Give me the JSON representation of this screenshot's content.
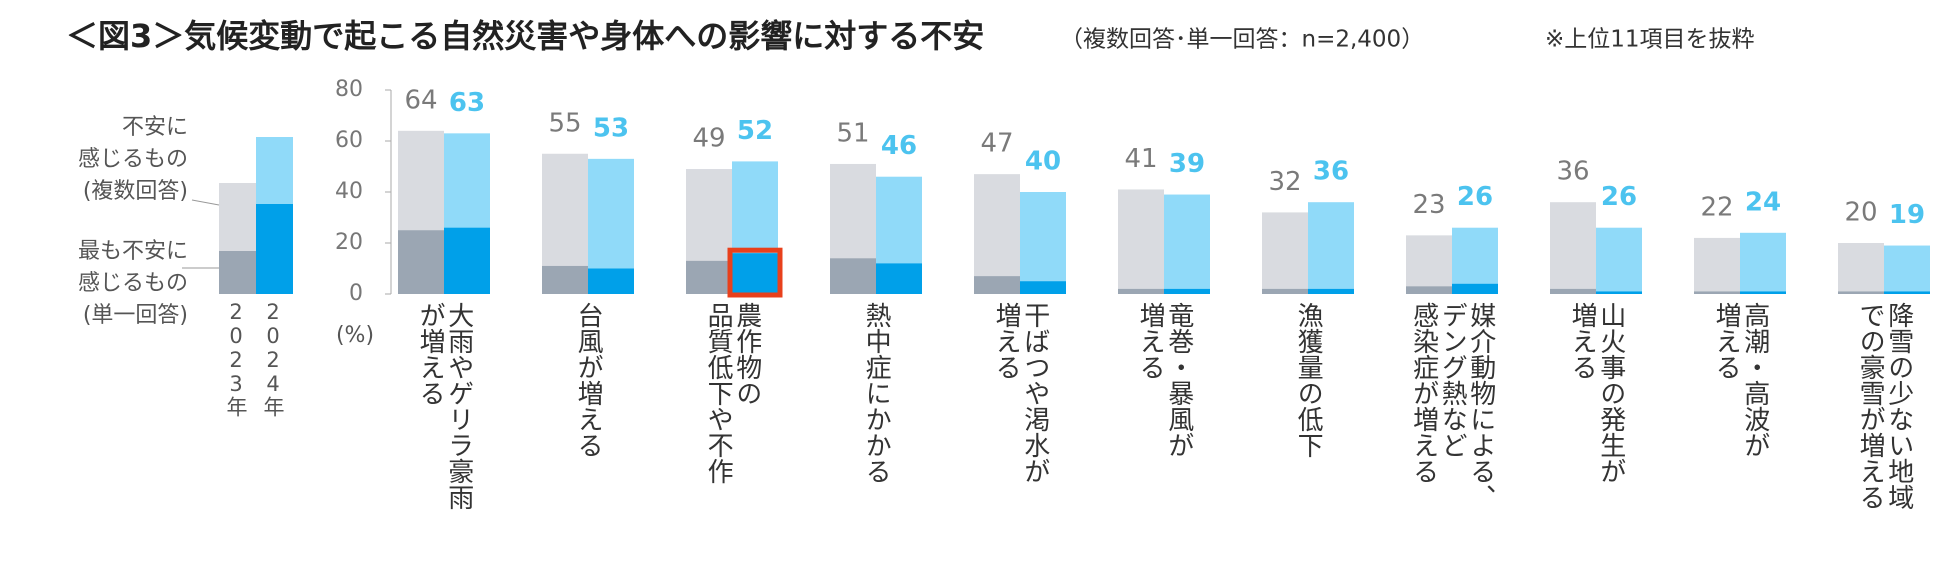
{
  "chart_data": {
    "type": "bar",
    "title": "＜図3＞気候変動で起こる自然災害や身体への影響に対する不安",
    "subtitle": "（複数回答･単一回答：n=2,400）",
    "note": "※上位11項目を抜粋",
    "y_label": "(%)",
    "legend_labels": {
      "multi": "不安に\n感じるもの\n(複数回答)",
      "single": "最も不安に\n感じるもの\n(単一回答)",
      "years": [
        "2023年",
        "2024年"
      ]
    },
    "categories": [
      "大雨やゲリラ豪雨\nが増える",
      "台風が増える",
      "農作物の\n品質低下や不作",
      "熱中症にかかる",
      "干ばつや渇水が\n増える",
      "竜巻・暴風が\n増える",
      "漁獲量の低下",
      "媒介動物による、\nデング熱など\n感染症が増える",
      "山火事の発生が\n増える",
      "高潮・高波が\n増える",
      "降雪の少ない地域\nでの豪雪が増える"
    ],
    "series": [
      {
        "name": "2023年 複数回答",
        "color": "#d9dbe0",
        "label_color": "#7a7a7a",
        "values": [
          64,
          55,
          49,
          51,
          47,
          41,
          32,
          23,
          36,
          22,
          20
        ]
      },
      {
        "name": "2023年 単一回答",
        "color": "#9ba6b3",
        "values": [
          25,
          11,
          13,
          14,
          7,
          2,
          2,
          3,
          2,
          1,
          1
        ]
      },
      {
        "name": "2024年 複数回答",
        "color": "#90daf9",
        "label_color": "#4cc3ef",
        "values": [
          63,
          53,
          52,
          46,
          40,
          39,
          36,
          26,
          26,
          24,
          19
        ]
      },
      {
        "name": "2024年 単一回答",
        "color": "#00a0e9",
        "values": [
          26,
          10,
          16,
          12,
          5,
          2,
          2,
          4,
          1,
          1,
          1
        ]
      }
    ],
    "ylim": [
      0,
      80
    ],
    "yticks": [
      0,
      20,
      40,
      60,
      80
    ],
    "highlight_color": "#e8401c"
  }
}
